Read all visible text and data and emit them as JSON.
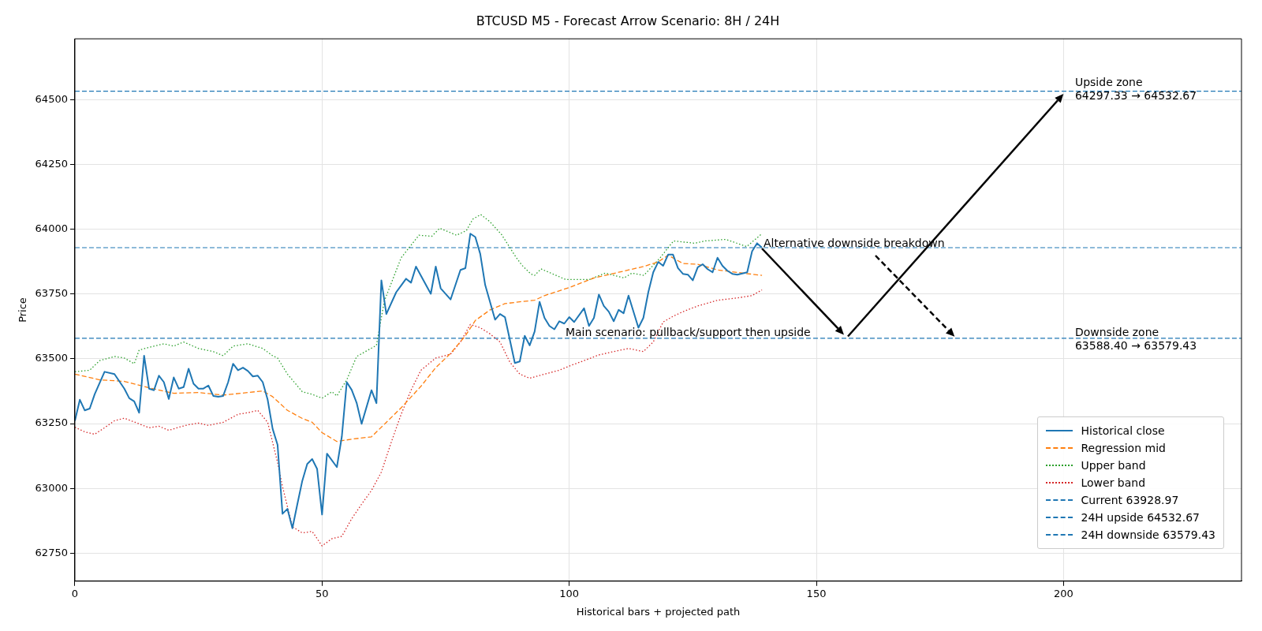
{
  "chart_data": {
    "type": "line",
    "title": "BTCUSD M5 - Forecast Arrow Scenario: 8H / 24H",
    "xlabel": "Historical bars + projected path",
    "ylabel": "Price",
    "xlim": [
      0,
      236
    ],
    "xticks": [
      0,
      50,
      100,
      150,
      200
    ],
    "ylim": [
      62642,
      64735
    ],
    "yticks": [
      62750,
      63000,
      63250,
      63500,
      63750,
      64000,
      64250,
      64500
    ],
    "grid": true,
    "legend": "bottom right",
    "marker": "none",
    "series": [
      {
        "name": "Historical close",
        "color": "#1f77b4",
        "line_style": "solid",
        "x": [
          0,
          1,
          2,
          3,
          4,
          6,
          8,
          10,
          11,
          12,
          13,
          14,
          15,
          16,
          17,
          18,
          19,
          20,
          21,
          22,
          23,
          24,
          25,
          26,
          27,
          28,
          29,
          30,
          31,
          32,
          33,
          34,
          35,
          36,
          37,
          38,
          39,
          40,
          41,
          42,
          43,
          44,
          45,
          46,
          47,
          48,
          49,
          50,
          51,
          53,
          54,
          55,
          56,
          57,
          58,
          60,
          61,
          62,
          63,
          65,
          67,
          68,
          69,
          72,
          73,
          74,
          76,
          78,
          79,
          80,
          81,
          82,
          83,
          85,
          86,
          87,
          89,
          90,
          91,
          92,
          93,
          94,
          95,
          96,
          97,
          98,
          99,
          100,
          101,
          103,
          104,
          105,
          106,
          107,
          108,
          109,
          110,
          111,
          112,
          114,
          115,
          116,
          117,
          118,
          119,
          120,
          121,
          122,
          123,
          124,
          125,
          126,
          127,
          128,
          129,
          130,
          131,
          132,
          133,
          134,
          136,
          137,
          138,
          139
        ],
        "values": [
          63261,
          63342,
          63301,
          63308,
          63363,
          63450,
          63441,
          63385,
          63348,
          63336,
          63292,
          63512,
          63385,
          63379,
          63435,
          63410,
          63345,
          63428,
          63385,
          63391,
          63462,
          63404,
          63385,
          63385,
          63397,
          63357,
          63354,
          63357,
          63410,
          63481,
          63456,
          63466,
          63453,
          63432,
          63435,
          63410,
          63342,
          63230,
          63168,
          62902,
          62921,
          62846,
          62939,
          63029,
          63094,
          63113,
          63075,
          62899,
          63134,
          63082,
          63200,
          63410,
          63380,
          63330,
          63249,
          63379,
          63329,
          63803,
          63673,
          63757,
          63809,
          63794,
          63856,
          63751,
          63856,
          63772,
          63729,
          63843,
          63850,
          63983,
          63970,
          63905,
          63785,
          63651,
          63673,
          63661,
          63484,
          63490,
          63589,
          63552,
          63605,
          63720,
          63658,
          63627,
          63614,
          63645,
          63636,
          63661,
          63642,
          63695,
          63627,
          63658,
          63748,
          63704,
          63682,
          63645,
          63689,
          63676,
          63744,
          63620,
          63658,
          63757,
          63834,
          63874,
          63859,
          63902,
          63902,
          63850,
          63828,
          63825,
          63803,
          63853,
          63865,
          63846,
          63834,
          63890,
          63859,
          63840,
          63828,
          63825,
          63834,
          63915,
          63946,
          63929
        ]
      },
      {
        "name": "Regression mid",
        "color": "#ff7f0e",
        "line_style": "dashed",
        "x": [
          0,
          5,
          10,
          15,
          20,
          25,
          30,
          35,
          38,
          40,
          43,
          46,
          48,
          50,
          53,
          56,
          60,
          63,
          66,
          70,
          73,
          76,
          79,
          81,
          84,
          87,
          90,
          93,
          95,
          100,
          105,
          110,
          115,
          118,
          120,
          123,
          126,
          130,
          135,
          139
        ],
        "values": [
          63441,
          63419,
          63413,
          63388,
          63367,
          63370,
          63360,
          63370,
          63376,
          63354,
          63301,
          63270,
          63255,
          63215,
          63181,
          63190,
          63199,
          63255,
          63311,
          63394,
          63466,
          63521,
          63589,
          63648,
          63689,
          63713,
          63720,
          63726,
          63744,
          63775,
          63812,
          63834,
          63856,
          63874,
          63900,
          63868,
          63865,
          63843,
          63831,
          63822
        ]
      },
      {
        "name": "Upper band",
        "color": "#2ca02c",
        "line_style": "dotted",
        "x": [
          0,
          3,
          5,
          8,
          10,
          12,
          13,
          16,
          18,
          20,
          22,
          25,
          28,
          30,
          32,
          35,
          38,
          40,
          41,
          43,
          46,
          48,
          50,
          52,
          53,
          55,
          57,
          61,
          62.6,
          66,
          69.6,
          72.2,
          73.8,
          77.2,
          79.2,
          80.5,
          82.1,
          83.9,
          86.3,
          89.2,
          90.4,
          92.2,
          93,
          94.3,
          99.3,
          104.1,
          107.3,
          111.1,
          112.7,
          115.1,
          118.4,
          121.1,
          125.4,
          127.5,
          131.7,
          135.9,
          139
        ],
        "values": [
          63450,
          63456,
          63493,
          63509,
          63503,
          63481,
          63534,
          63549,
          63558,
          63549,
          63565,
          63540,
          63528,
          63512,
          63549,
          63558,
          63540,
          63512,
          63503,
          63441,
          63373,
          63363,
          63348,
          63373,
          63357,
          63419,
          63509,
          63552,
          63723,
          63890,
          63977,
          63973,
          64004,
          63977,
          63995,
          64039,
          64057,
          64030,
          63980,
          63893,
          63862,
          63828,
          63822,
          63847,
          63806,
          63806,
          63831,
          63812,
          63831,
          63822,
          63890,
          63955,
          63946,
          63955,
          63961,
          63933,
          63983
        ]
      },
      {
        "name": "Lower band",
        "color": "#d62728",
        "line_style": "dotted",
        "x": [
          0,
          2,
          4,
          6,
          8,
          10,
          13,
          15,
          17,
          19,
          21,
          23,
          25,
          27,
          30,
          33,
          35,
          37,
          39,
          41,
          42,
          44,
          46,
          48,
          50,
          52,
          54,
          56,
          58,
          60,
          62,
          64,
          66,
          68,
          70,
          73,
          76,
          78,
          80,
          82,
          84,
          86,
          88,
          90,
          92,
          95,
          98,
          100,
          103,
          106,
          109,
          112,
          115,
          117,
          119,
          121,
          123,
          126,
          130,
          134,
          137,
          139
        ],
        "values": [
          63236,
          63218,
          63209,
          63234,
          63261,
          63271,
          63249,
          63234,
          63240,
          63224,
          63236,
          63246,
          63252,
          63243,
          63255,
          63286,
          63292,
          63301,
          63255,
          63100,
          63007,
          62852,
          62828,
          62834,
          62778,
          62806,
          62815,
          62883,
          62939,
          62992,
          63063,
          63178,
          63286,
          63379,
          63456,
          63503,
          63518,
          63565,
          63633,
          63620,
          63596,
          63565,
          63487,
          63441,
          63425,
          63441,
          63456,
          63472,
          63493,
          63515,
          63528,
          63540,
          63528,
          63565,
          63642,
          63664,
          63682,
          63704,
          63726,
          63735,
          63744,
          63766
        ]
      }
    ],
    "ref_lines": [
      {
        "axis": "y",
        "value": 63928.97,
        "label": "Current 63928.97",
        "color": "#1f77b4",
        "line_style": "dashed"
      },
      {
        "axis": "y",
        "value": 64532.67,
        "label": "24H upside 64532.67",
        "color": "#1f77b4",
        "line_style": "dashed"
      },
      {
        "axis": "y",
        "value": 63579.43,
        "label": "24H downside 63579.43",
        "color": "#1f77b4",
        "line_style": "dashed"
      }
    ],
    "annotations": [
      "Main scenario: pullback/support then upside",
      "Alternative downside breakdown",
      "Upside zone\n64297.33 → 64532.67",
      "Downside zone\n63588.40 → 63579.43"
    ]
  }
}
